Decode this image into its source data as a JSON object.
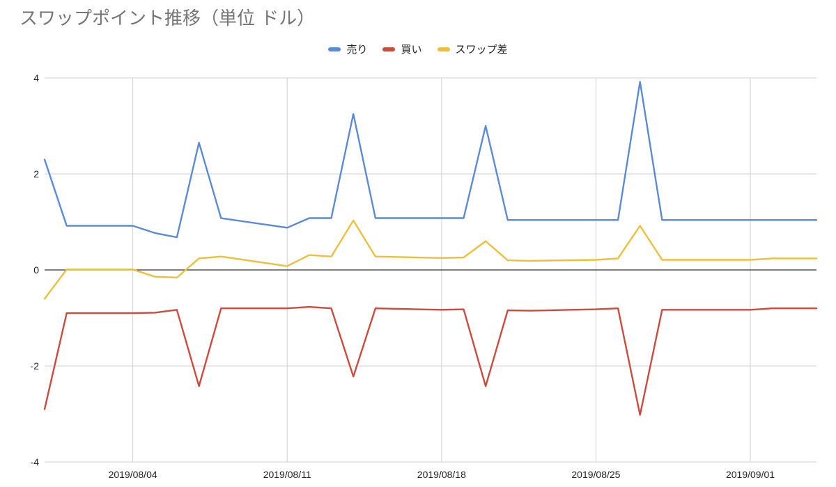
{
  "colors": {
    "sell": "#5b8bd4",
    "buy": "#cc4b3c",
    "diff": "#eebf3c",
    "grid": "#d0d0d0",
    "zero": "#333333"
  },
  "chart_data": {
    "type": "line",
    "title": "スワップポイント推移（単位 ドル）",
    "xlabel": "",
    "ylabel": "",
    "ylim": [
      -4,
      4
    ],
    "yticks": [
      4,
      2,
      0,
      -2,
      -4
    ],
    "xlim": [
      "2019-07-31",
      "2019-09-04"
    ],
    "xticks": [
      "2019-08-04",
      "2019-08-11",
      "2019-08-18",
      "2019-08-25",
      "2019-09-01"
    ],
    "xtick_labels": [
      "2019/08/04",
      "2019/08/11",
      "2019/08/18",
      "2019/08/25",
      "2019/09/01"
    ],
    "grid": true,
    "legend_position": "top",
    "x": [
      "2019-07-31",
      "2019-08-01",
      "2019-08-04",
      "2019-08-05",
      "2019-08-06",
      "2019-08-07",
      "2019-08-08",
      "2019-08-11",
      "2019-08-12",
      "2019-08-13",
      "2019-08-14",
      "2019-08-15",
      "2019-08-18",
      "2019-08-19",
      "2019-08-20",
      "2019-08-21",
      "2019-08-22",
      "2019-08-25",
      "2019-08-26",
      "2019-08-27",
      "2019-08-28",
      "2019-09-01",
      "2019-09-02",
      "2019-09-03",
      "2019-09-04"
    ],
    "series": [
      {
        "name": "売り",
        "color_key": "sell",
        "values": [
          2.3,
          0.92,
          0.92,
          0.77,
          0.68,
          2.65,
          1.08,
          0.88,
          1.08,
          1.08,
          3.25,
          1.08,
          1.08,
          1.08,
          3.0,
          1.04,
          1.04,
          1.04,
          1.04,
          3.92,
          1.04,
          1.04,
          1.04,
          1.04,
          1.04
        ]
      },
      {
        "name": "買い",
        "color_key": "buy",
        "values": [
          -2.9,
          -0.9,
          -0.9,
          -0.89,
          -0.83,
          -2.42,
          -0.8,
          -0.8,
          -0.77,
          -0.8,
          -2.22,
          -0.8,
          -0.83,
          -0.82,
          -2.42,
          -0.84,
          -0.85,
          -0.82,
          -0.8,
          -3.02,
          -0.83,
          -0.83,
          -0.8,
          -0.8,
          -0.8
        ]
      },
      {
        "name": "スワップ差",
        "color_key": "diff",
        "values": [
          -0.6,
          0.01,
          0.01,
          -0.14,
          -0.16,
          0.24,
          0.28,
          0.08,
          0.31,
          0.28,
          1.03,
          0.28,
          0.25,
          0.26,
          0.6,
          0.2,
          0.19,
          0.21,
          0.24,
          0.92,
          0.21,
          0.21,
          0.24,
          0.24,
          0.24
        ]
      }
    ]
  }
}
